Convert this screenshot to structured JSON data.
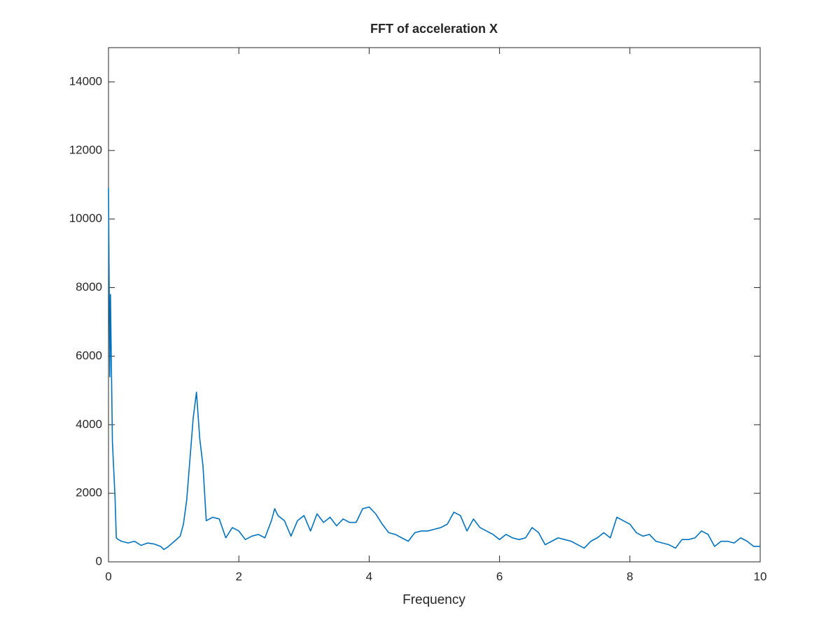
{
  "chart_data": {
    "type": "line",
    "title": "FFT of acceleration X",
    "xlabel": "Frequency",
    "x": [
      0,
      0.02,
      0.03,
      0.06,
      0.1,
      0.12,
      0.15,
      0.2,
      0.3,
      0.4,
      0.5,
      0.6,
      0.7,
      0.8,
      0.85,
      0.9,
      1.0,
      1.1,
      1.15,
      1.2,
      1.25,
      1.3,
      1.35,
      1.4,
      1.45,
      1.5,
      1.6,
      1.7,
      1.8,
      1.9,
      2.0,
      2.1,
      2.2,
      2.3,
      2.4,
      2.5,
      2.55,
      2.6,
      2.7,
      2.8,
      2.9,
      3.0,
      3.1,
      3.2,
      3.3,
      3.4,
      3.5,
      3.6,
      3.7,
      3.8,
      3.9,
      4.0,
      4.1,
      4.2,
      4.3,
      4.4,
      4.5,
      4.6,
      4.7,
      4.8,
      4.9,
      5.0,
      5.1,
      5.2,
      5.3,
      5.4,
      5.5,
      5.6,
      5.7,
      5.8,
      5.9,
      6.0,
      6.1,
      6.2,
      6.3,
      6.4,
      6.5,
      6.6,
      6.7,
      6.8,
      6.9,
      7.0,
      7.1,
      7.2,
      7.3,
      7.4,
      7.5,
      7.6,
      7.7,
      7.8,
      7.9,
      8.0,
      8.1,
      8.2,
      8.3,
      8.4,
      8.5,
      8.6,
      8.7,
      8.8,
      8.9,
      9.0,
      9.1,
      9.2,
      9.3,
      9.4,
      9.5,
      9.6,
      9.7,
      9.8,
      9.9,
      10.0
    ],
    "series": [
      {
        "color": "#0072bd",
        "values": [
          10900,
          5400,
          7800,
          3500,
          1900,
          700,
          650,
          600,
          550,
          600,
          480,
          550,
          520,
          450,
          360,
          420,
          580,
          750,
          1100,
          1800,
          3000,
          4200,
          4950,
          3600,
          2800,
          1200,
          1300,
          1250,
          700,
          1000,
          900,
          650,
          750,
          800,
          700,
          1200,
          1550,
          1350,
          1200,
          750,
          1200,
          1350,
          900,
          1400,
          1150,
          1300,
          1050,
          1250,
          1150,
          1150,
          1550,
          1600,
          1400,
          1100,
          850,
          800,
          700,
          600,
          850,
          900,
          900,
          950,
          1000,
          1100,
          1450,
          1350,
          900,
          1250,
          1000,
          900,
          800,
          650,
          800,
          700,
          650,
          700,
          1000,
          850,
          500,
          600,
          700,
          650,
          600,
          500,
          400,
          600,
          700,
          850,
          700,
          1300,
          1200,
          1100,
          850,
          750,
          800,
          600,
          550,
          500,
          400,
          650,
          650,
          700,
          900,
          800,
          450,
          600,
          600,
          550,
          700,
          600,
          450,
          450
        ]
      }
    ],
    "xlim": [
      0,
      10
    ],
    "xticks": [
      0,
      2,
      4,
      6,
      8,
      10
    ],
    "ylim": [
      0,
      15000
    ],
    "yticks": [
      0,
      2000,
      4000,
      6000,
      8000,
      10000,
      12000,
      14000
    ]
  }
}
